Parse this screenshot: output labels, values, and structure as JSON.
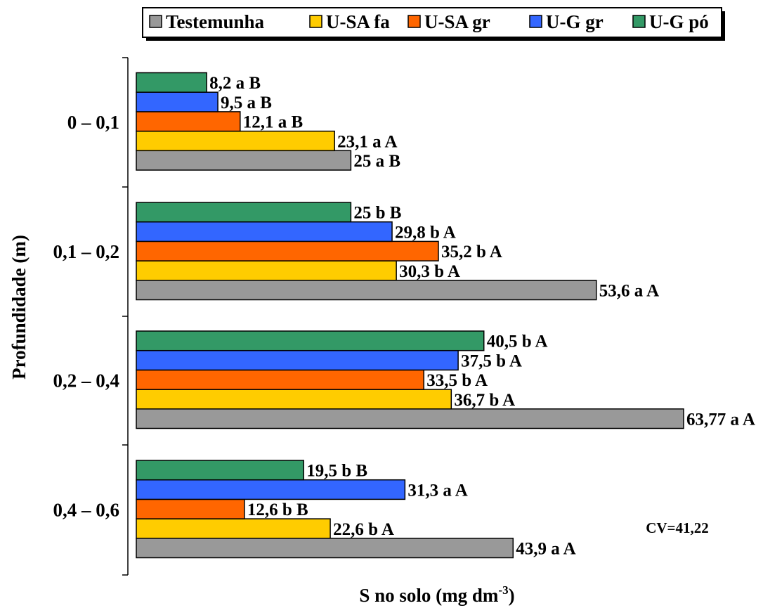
{
  "chart_data": {
    "type": "bar",
    "orientation": "horizontal",
    "title": "",
    "xlabel": "S no solo (mg dm",
    "xlabel_sup": "-3",
    "xlabel_suffix": ")",
    "ylabel": "Profundidade (m)",
    "xlim": [
      0,
      64
    ],
    "categories": [
      "0 – 0,1",
      "0,1 – 0,2",
      "0,2 – 0,4",
      "0,4 – 0,6"
    ],
    "series": [
      {
        "name": "Testemunha",
        "color": "#999999",
        "values": [
          25,
          53.6,
          63.77,
          43.9
        ],
        "labels": [
          "25 a B",
          "53,6 a A",
          "63,77 a A",
          "43,9 a A"
        ]
      },
      {
        "name": "U-SA fa",
        "color": "#FFCC00",
        "values": [
          23.1,
          30.3,
          36.7,
          22.6
        ],
        "labels": [
          "23,1 a A",
          "30,3 b A",
          "36,7 b A",
          "22,6 b A"
        ]
      },
      {
        "name": "U-SA gr",
        "color": "#FF6600",
        "values": [
          12.1,
          35.2,
          33.5,
          12.6
        ],
        "labels": [
          "12,1 a B",
          "35,2 b A",
          "33,5 b A",
          "12,6 b B"
        ]
      },
      {
        "name": "U-G gr",
        "color": "#3366FF",
        "values": [
          9.5,
          29.8,
          37.5,
          31.3
        ],
        "labels": [
          "9,5 a B",
          "29,8 b A",
          "37,5 b A",
          "31,3 a A"
        ]
      },
      {
        "name": "U-G pó",
        "color": "#339966",
        "values": [
          8.2,
          25,
          40.5,
          19.5
        ],
        "labels": [
          "8,2 a B",
          "25 b B",
          "40,5 b A",
          "19,5 b B"
        ]
      }
    ],
    "annotation": "CV=41,22",
    "legend_position": "top",
    "grid": false
  }
}
